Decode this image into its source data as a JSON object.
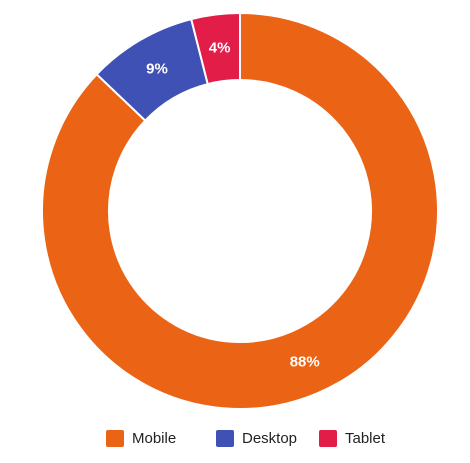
{
  "chart_data": {
    "type": "pie",
    "variant": "doughnut",
    "categories": [
      "Mobile",
      "Desktop",
      "Tablet"
    ],
    "values": [
      88,
      9,
      4
    ],
    "data_labels": [
      "88%",
      "9%",
      "4%"
    ],
    "colors": [
      "#EB6416",
      "#3F51B5",
      "#E11D48"
    ],
    "legend_position": "bottom",
    "title": ""
  },
  "legend": {
    "items": [
      {
        "label": "Mobile",
        "color": "#EB6416"
      },
      {
        "label": "Desktop",
        "color": "#3F51B5"
      },
      {
        "label": "Tablet",
        "color": "#E11D48"
      }
    ]
  }
}
